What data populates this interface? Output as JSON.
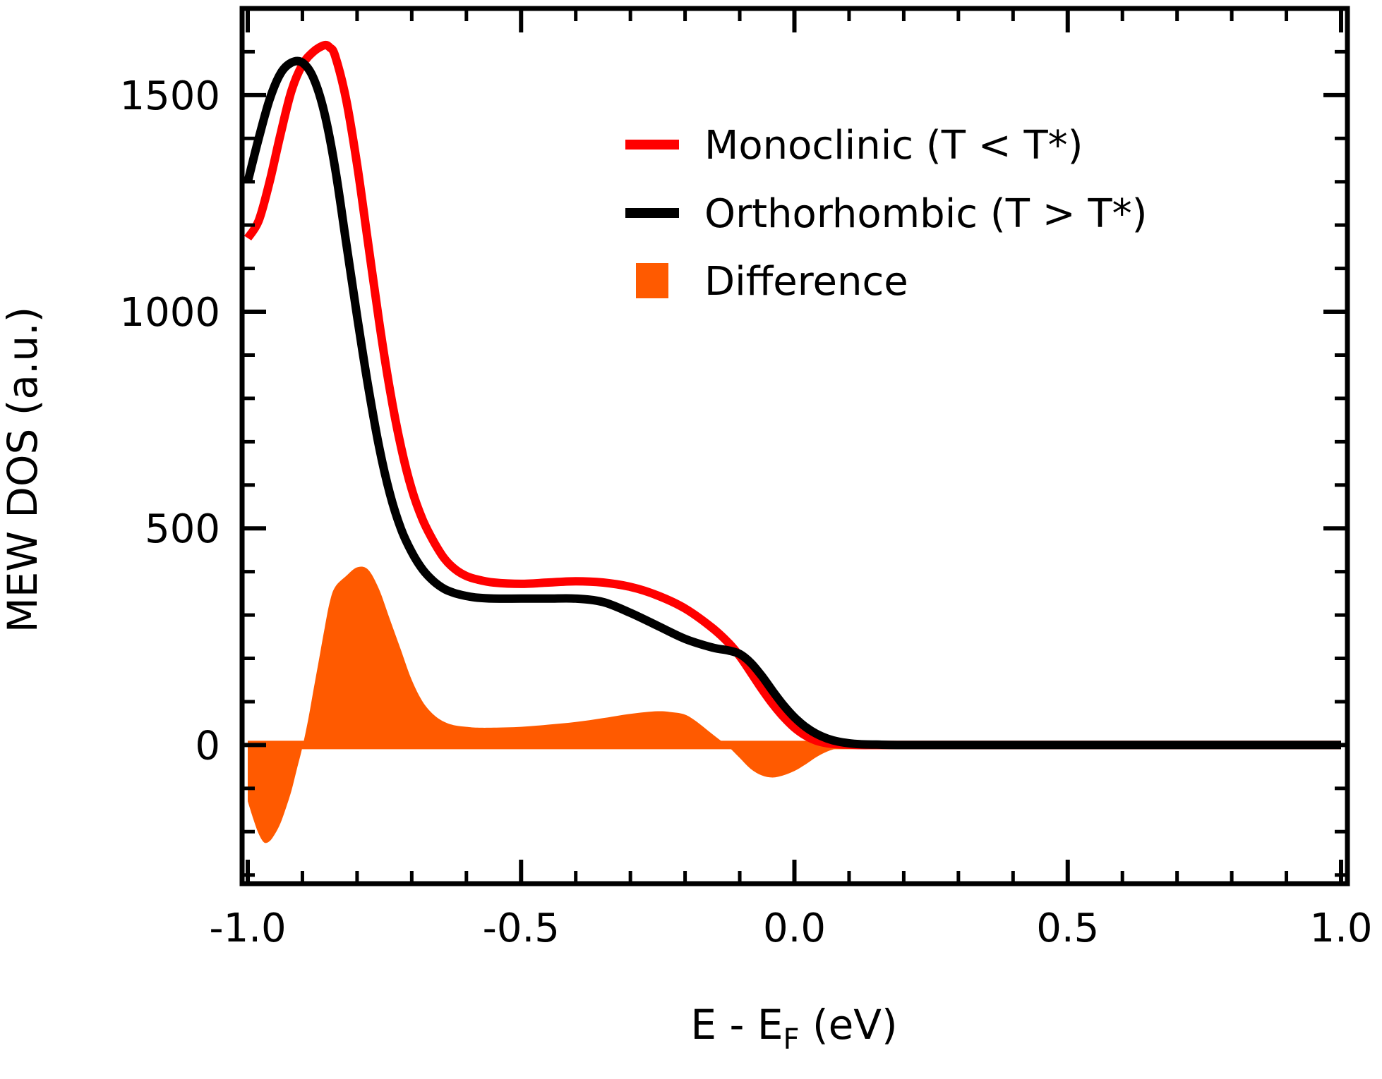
{
  "chart_data": {
    "type": "line",
    "title": "",
    "xlabel_main": "E - E",
    "xlabel_sub": "F",
    "xlabel_unit": " (eV)",
    "ylabel": "MEW DOS (a.u.)",
    "xlim": [
      -1.0,
      1.0
    ],
    "ylim": [
      -320,
      1700
    ],
    "x_ticks": [
      -1.0,
      -0.5,
      0.0,
      0.5,
      1.0
    ],
    "x_tick_labels": [
      "-1.0",
      "-0.5",
      "0.0",
      "0.5",
      "1.0"
    ],
    "x_minor_step": 0.1,
    "y_ticks": [
      0,
      500,
      1000,
      1500
    ],
    "y_tick_labels": [
      "0",
      "500",
      "1000",
      "1500"
    ],
    "y_minor_step": 100,
    "grid": false,
    "legend_position": "top-right",
    "series": [
      {
        "name": "Monoclinic (T < T*)",
        "kind": "line",
        "color": "#ff0000",
        "x": [
          -1.0,
          -0.98,
          -0.96,
          -0.94,
          -0.92,
          -0.9,
          -0.88,
          -0.86,
          -0.85,
          -0.84,
          -0.82,
          -0.8,
          -0.78,
          -0.76,
          -0.74,
          -0.72,
          -0.7,
          -0.68,
          -0.66,
          -0.64,
          -0.62,
          -0.6,
          -0.58,
          -0.55,
          -0.5,
          -0.45,
          -0.4,
          -0.35,
          -0.3,
          -0.25,
          -0.2,
          -0.15,
          -0.12,
          -0.1,
          -0.08,
          -0.06,
          -0.04,
          -0.02,
          0.0,
          0.02,
          0.04,
          0.06,
          0.08,
          0.1,
          0.12,
          0.15,
          0.2,
          0.3,
          0.5,
          0.7,
          1.0
        ],
        "y": [
          1170,
          1210,
          1300,
          1410,
          1510,
          1570,
          1600,
          1615,
          1610,
          1590,
          1490,
          1340,
          1160,
          980,
          820,
          690,
          590,
          520,
          470,
          430,
          405,
          390,
          382,
          375,
          372,
          375,
          378,
          375,
          365,
          345,
          315,
          270,
          235,
          205,
          168,
          130,
          95,
          65,
          40,
          22,
          10,
          4,
          2,
          1,
          0,
          0,
          0,
          0,
          0,
          0,
          0
        ]
      },
      {
        "name": "Orthorhombic (T > T*)",
        "kind": "line",
        "color": "#000000",
        "x": [
          -1.0,
          -0.98,
          -0.96,
          -0.94,
          -0.92,
          -0.9,
          -0.88,
          -0.86,
          -0.84,
          -0.82,
          -0.8,
          -0.78,
          -0.76,
          -0.74,
          -0.72,
          -0.7,
          -0.68,
          -0.66,
          -0.64,
          -0.62,
          -0.6,
          -0.58,
          -0.55,
          -0.5,
          -0.45,
          -0.4,
          -0.35,
          -0.3,
          -0.25,
          -0.2,
          -0.15,
          -0.12,
          -0.1,
          -0.08,
          -0.06,
          -0.04,
          -0.02,
          0.0,
          0.02,
          0.04,
          0.06,
          0.08,
          0.1,
          0.12,
          0.15,
          0.2,
          0.3,
          0.5,
          0.7,
          1.0
        ],
        "y": [
          1300,
          1400,
          1490,
          1550,
          1575,
          1575,
          1540,
          1460,
          1330,
          1160,
          990,
          830,
          690,
          580,
          500,
          445,
          405,
          378,
          360,
          350,
          344,
          340,
          338,
          338,
          338,
          338,
          330,
          305,
          275,
          245,
          225,
          218,
          210,
          190,
          160,
          125,
          92,
          64,
          42,
          26,
          15,
          8,
          4,
          2,
          1,
          0,
          0,
          0,
          0,
          0
        ]
      },
      {
        "name": "Difference",
        "kind": "fill",
        "color": "#ff5a00",
        "x": [
          -1.0,
          -0.99,
          -0.98,
          -0.97,
          -0.96,
          -0.95,
          -0.94,
          -0.93,
          -0.92,
          -0.91,
          -0.9,
          -0.89,
          -0.88,
          -0.87,
          -0.86,
          -0.85,
          -0.84,
          -0.82,
          -0.8,
          -0.78,
          -0.76,
          -0.74,
          -0.72,
          -0.7,
          -0.68,
          -0.66,
          -0.64,
          -0.62,
          -0.6,
          -0.58,
          -0.55,
          -0.5,
          -0.45,
          -0.4,
          -0.35,
          -0.3,
          -0.25,
          -0.22,
          -0.2,
          -0.18,
          -0.15,
          -0.12,
          -0.1,
          -0.08,
          -0.06,
          -0.04,
          -0.02,
          0.0,
          0.02,
          0.04,
          0.06,
          0.08,
          0.1,
          0.12,
          0.15,
          0.2,
          0.3,
          0.5,
          0.7,
          1.0
        ],
        "y": [
          -130,
          -170,
          -205,
          -225,
          -222,
          -205,
          -180,
          -145,
          -105,
          -55,
          -5,
          55,
          125,
          195,
          265,
          330,
          365,
          390,
          410,
          405,
          360,
          290,
          220,
          150,
          100,
          70,
          53,
          45,
          42,
          40,
          40,
          42,
          47,
          53,
          62,
          72,
          78,
          75,
          70,
          55,
          25,
          -5,
          -30,
          -55,
          -70,
          -75,
          -70,
          -60,
          -45,
          -28,
          -15,
          -7,
          -3,
          -1,
          0,
          0,
          0,
          0,
          0,
          0
        ]
      }
    ]
  }
}
